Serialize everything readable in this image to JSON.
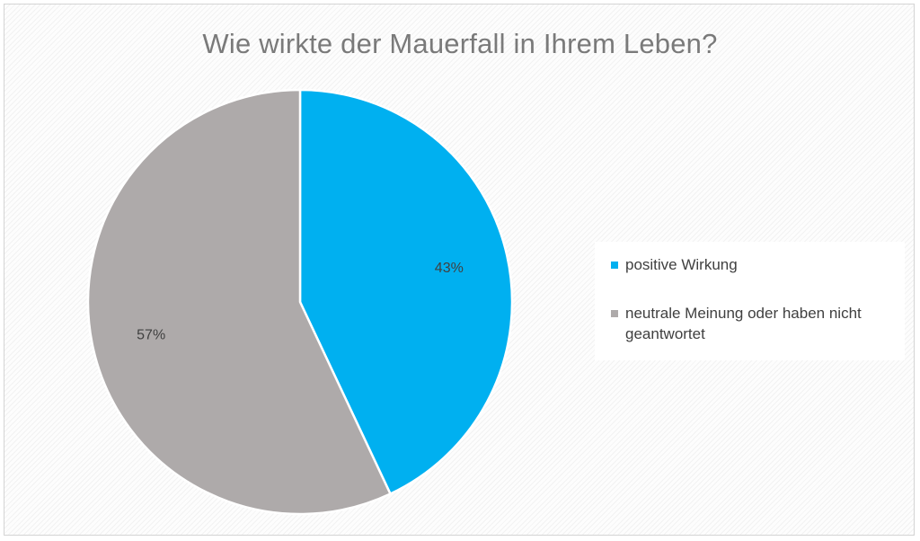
{
  "chart_data": {
    "type": "pie",
    "title": "Wie wirkte der Mauerfall in Ihrem Leben?",
    "slices": [
      {
        "label": "positive Wirkung",
        "value": 43,
        "display": "43%",
        "color": "#00b0f0"
      },
      {
        "label": "neutrale Meinung oder haben nicht geantwortet",
        "value": 57,
        "display": "57%",
        "color": "#aeaaaa"
      }
    ],
    "start_angle_deg": 0,
    "direction": "clockwise",
    "legend_position": "right",
    "data_labels": "inside",
    "slice_border_color": "#ffffff"
  }
}
